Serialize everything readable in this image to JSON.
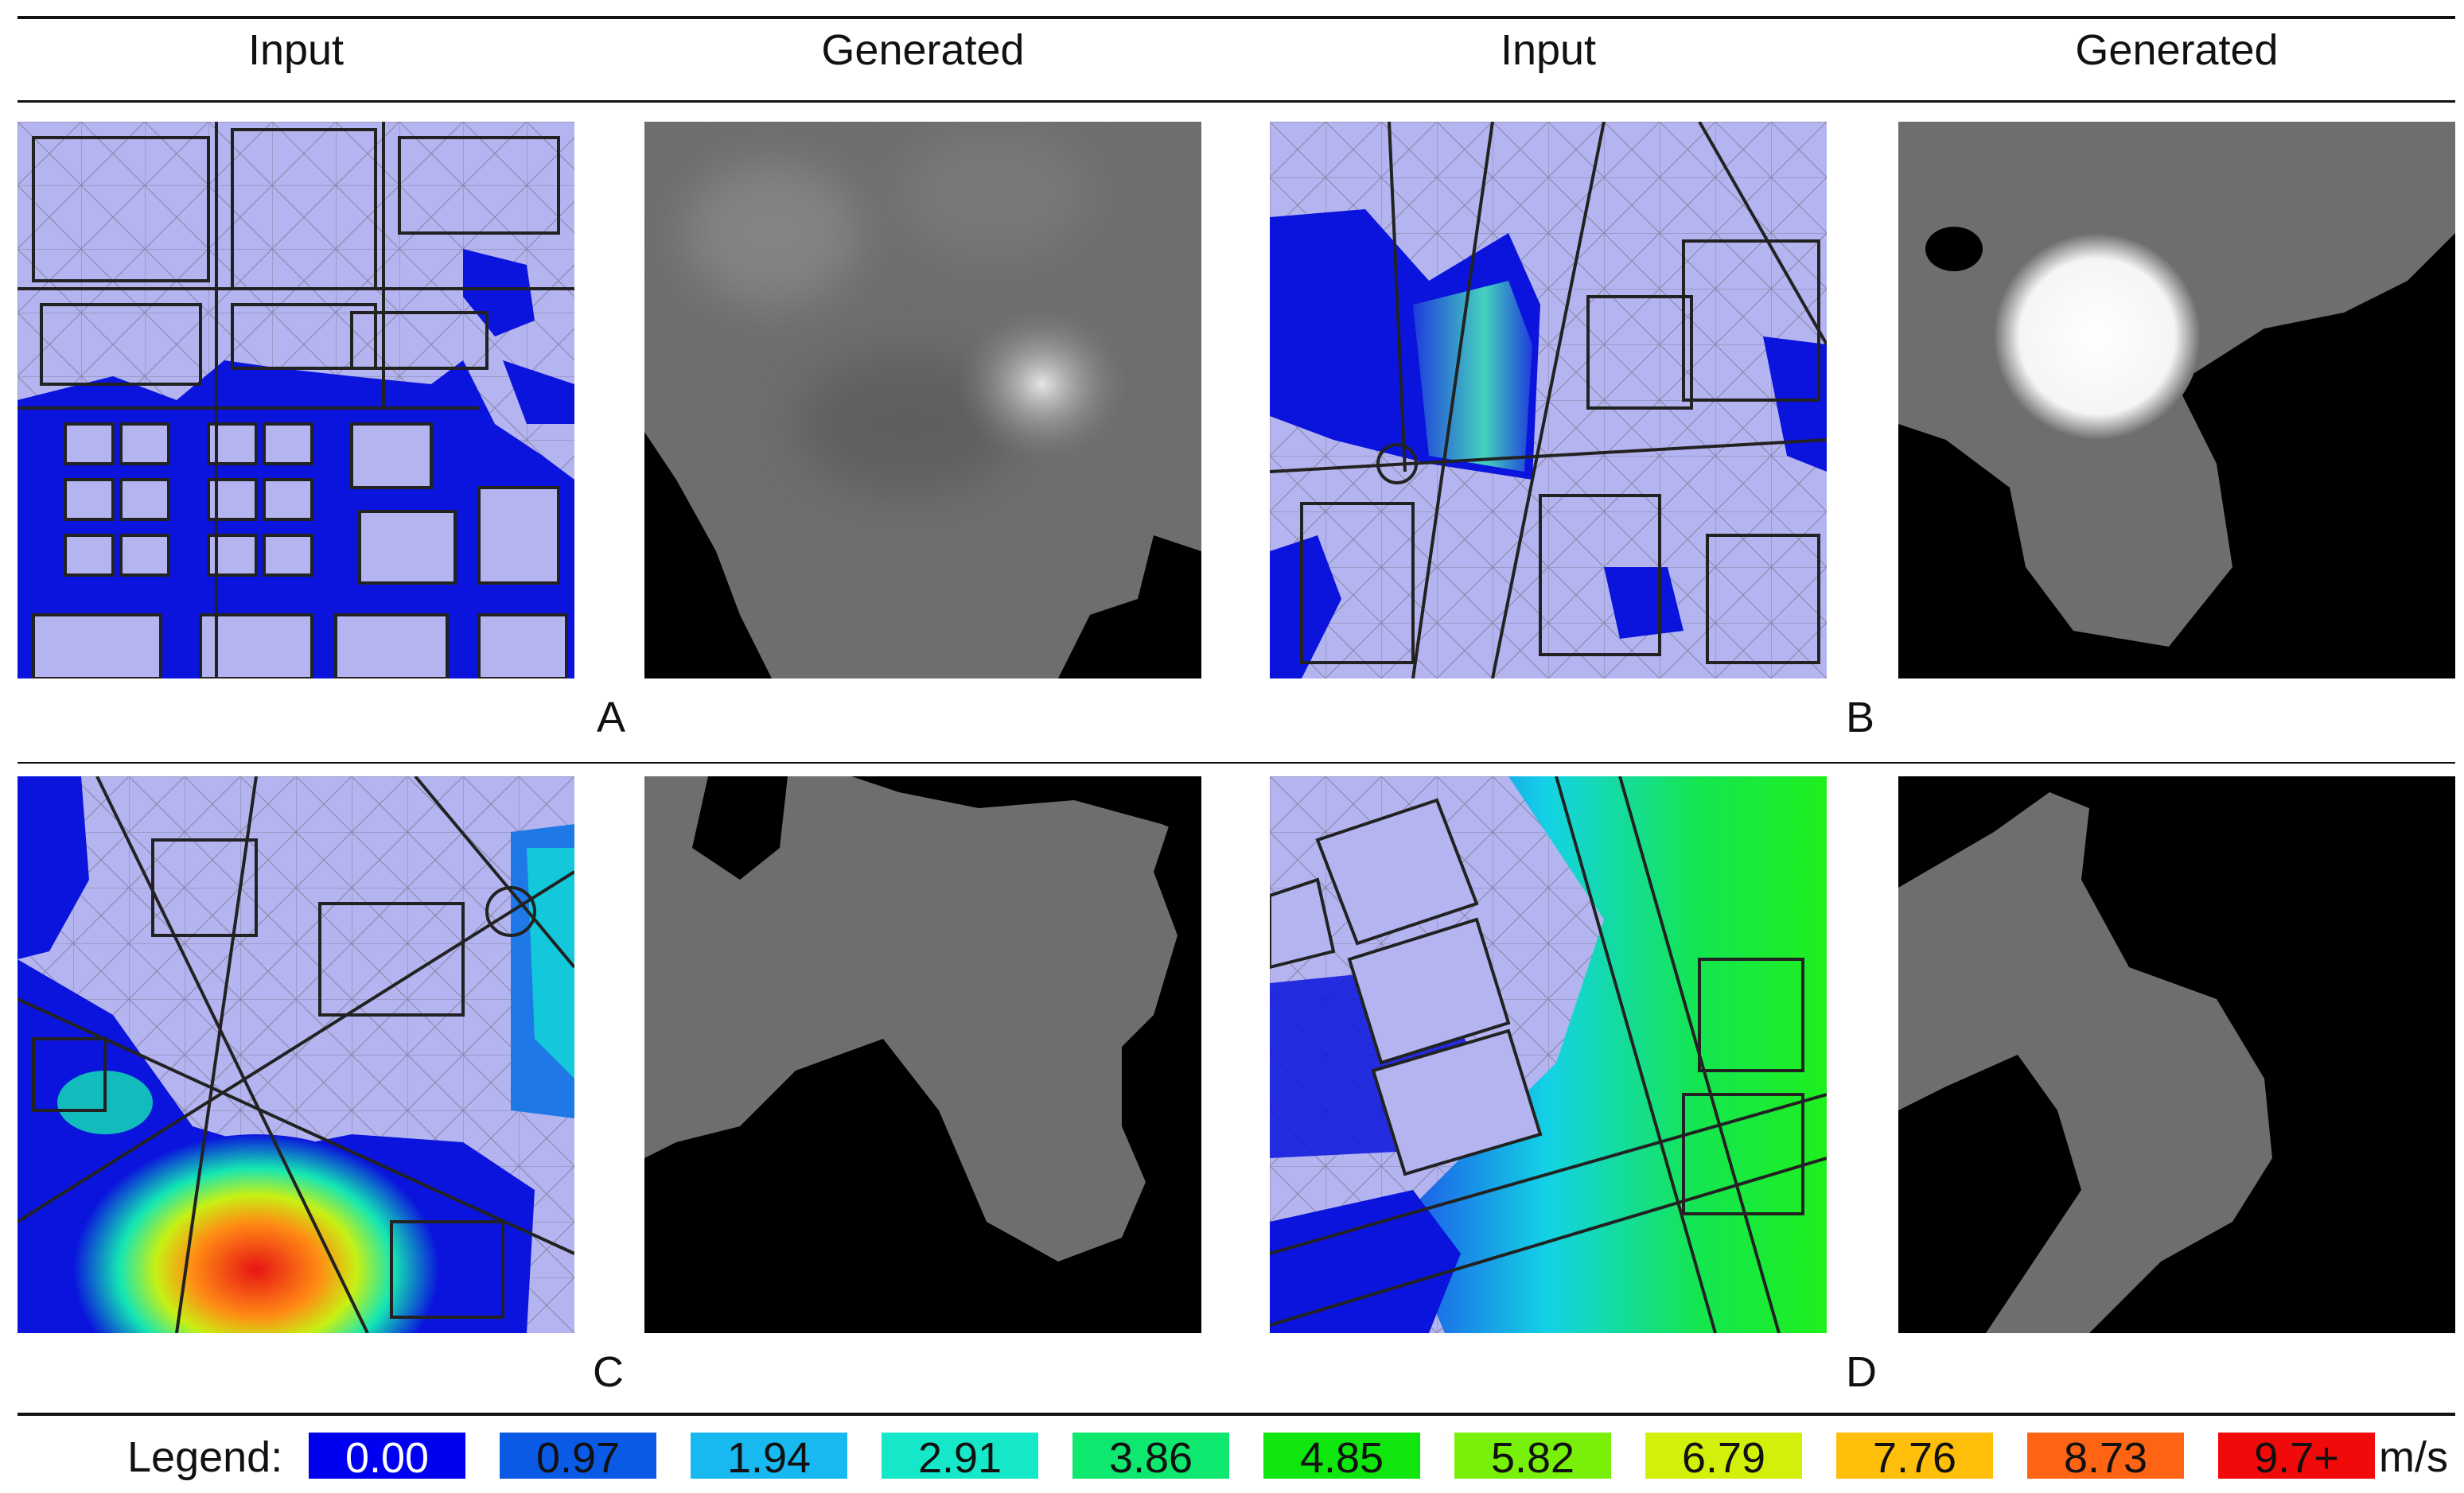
{
  "header": {
    "columns": [
      "Input",
      "Generated",
      "Input",
      "Generated"
    ]
  },
  "panels": {
    "A": {
      "label": "A"
    },
    "B": {
      "label": "B"
    },
    "C": {
      "label": "C"
    },
    "D": {
      "label": "D"
    }
  },
  "legend": {
    "title": "Legend:",
    "unit": "m/s",
    "items": [
      {
        "label": "0.00",
        "color": "#0000f0"
      },
      {
        "label": "0.97",
        "color": "#0a5ae6"
      },
      {
        "label": "1.94",
        "color": "#18b8f0"
      },
      {
        "label": "2.91",
        "color": "#14e8c8"
      },
      {
        "label": "3.86",
        "color": "#0ee86e"
      },
      {
        "label": "4.85",
        "color": "#0ee60e"
      },
      {
        "label": "5.82",
        "color": "#78f00a"
      },
      {
        "label": "6.79",
        "color": "#d2f00a"
      },
      {
        "label": "7.76",
        "color": "#ffbe0a"
      },
      {
        "label": "8.73",
        "color": "#ff6414"
      },
      {
        "label": "9.7+",
        "color": "#f00a0a"
      }
    ]
  },
  "colors": {
    "building_fill": "#b4b4f0",
    "low_speed_blue": "#0a14dc",
    "generated_background": "#000000",
    "generated_field": "#6e6e6e"
  }
}
